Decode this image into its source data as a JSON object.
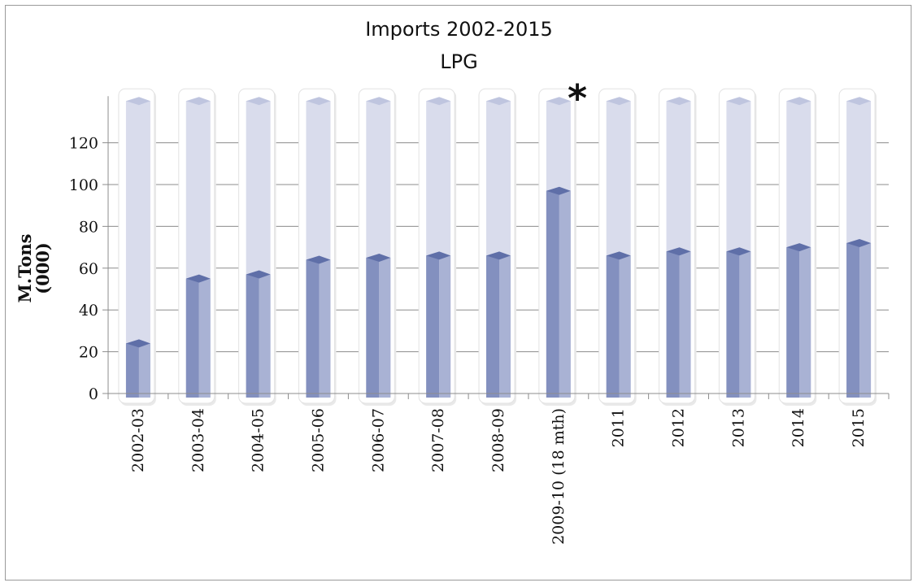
{
  "chart_data": {
    "type": "bar",
    "title": "Imports 2002-2015",
    "subtitle": "LPG",
    "ylabel": "M.Tons (000)",
    "ylabel_lines": [
      "M.Tons",
      "(000)"
    ],
    "xlabel": "",
    "categories": [
      "2002-03",
      "2003-04",
      "2004-05",
      "2005-06",
      "2006-07",
      "2007-08",
      "2008-09",
      "2009-10 (18 mth)",
      "2011",
      "2012",
      "2013",
      "2014",
      "2015"
    ],
    "values": [
      24,
      55,
      57,
      64,
      65,
      66,
      66,
      97,
      66,
      68,
      68,
      70,
      72
    ],
    "yticks": [
      "0",
      "20",
      "40",
      "60",
      "80",
      "100",
      "120"
    ],
    "ylim": [
      0,
      140
    ],
    "annotation": "*",
    "annotation_category": "2009-10 (18 mth)",
    "grid": true,
    "colors": {
      "bar_front": "#8390bf",
      "bar_side": "#a9b2d4",
      "bar_top": "#5f6fa8",
      "track": "#d9dcec",
      "track_top": "#bfc5df",
      "grid": "#8c8c8c"
    }
  }
}
